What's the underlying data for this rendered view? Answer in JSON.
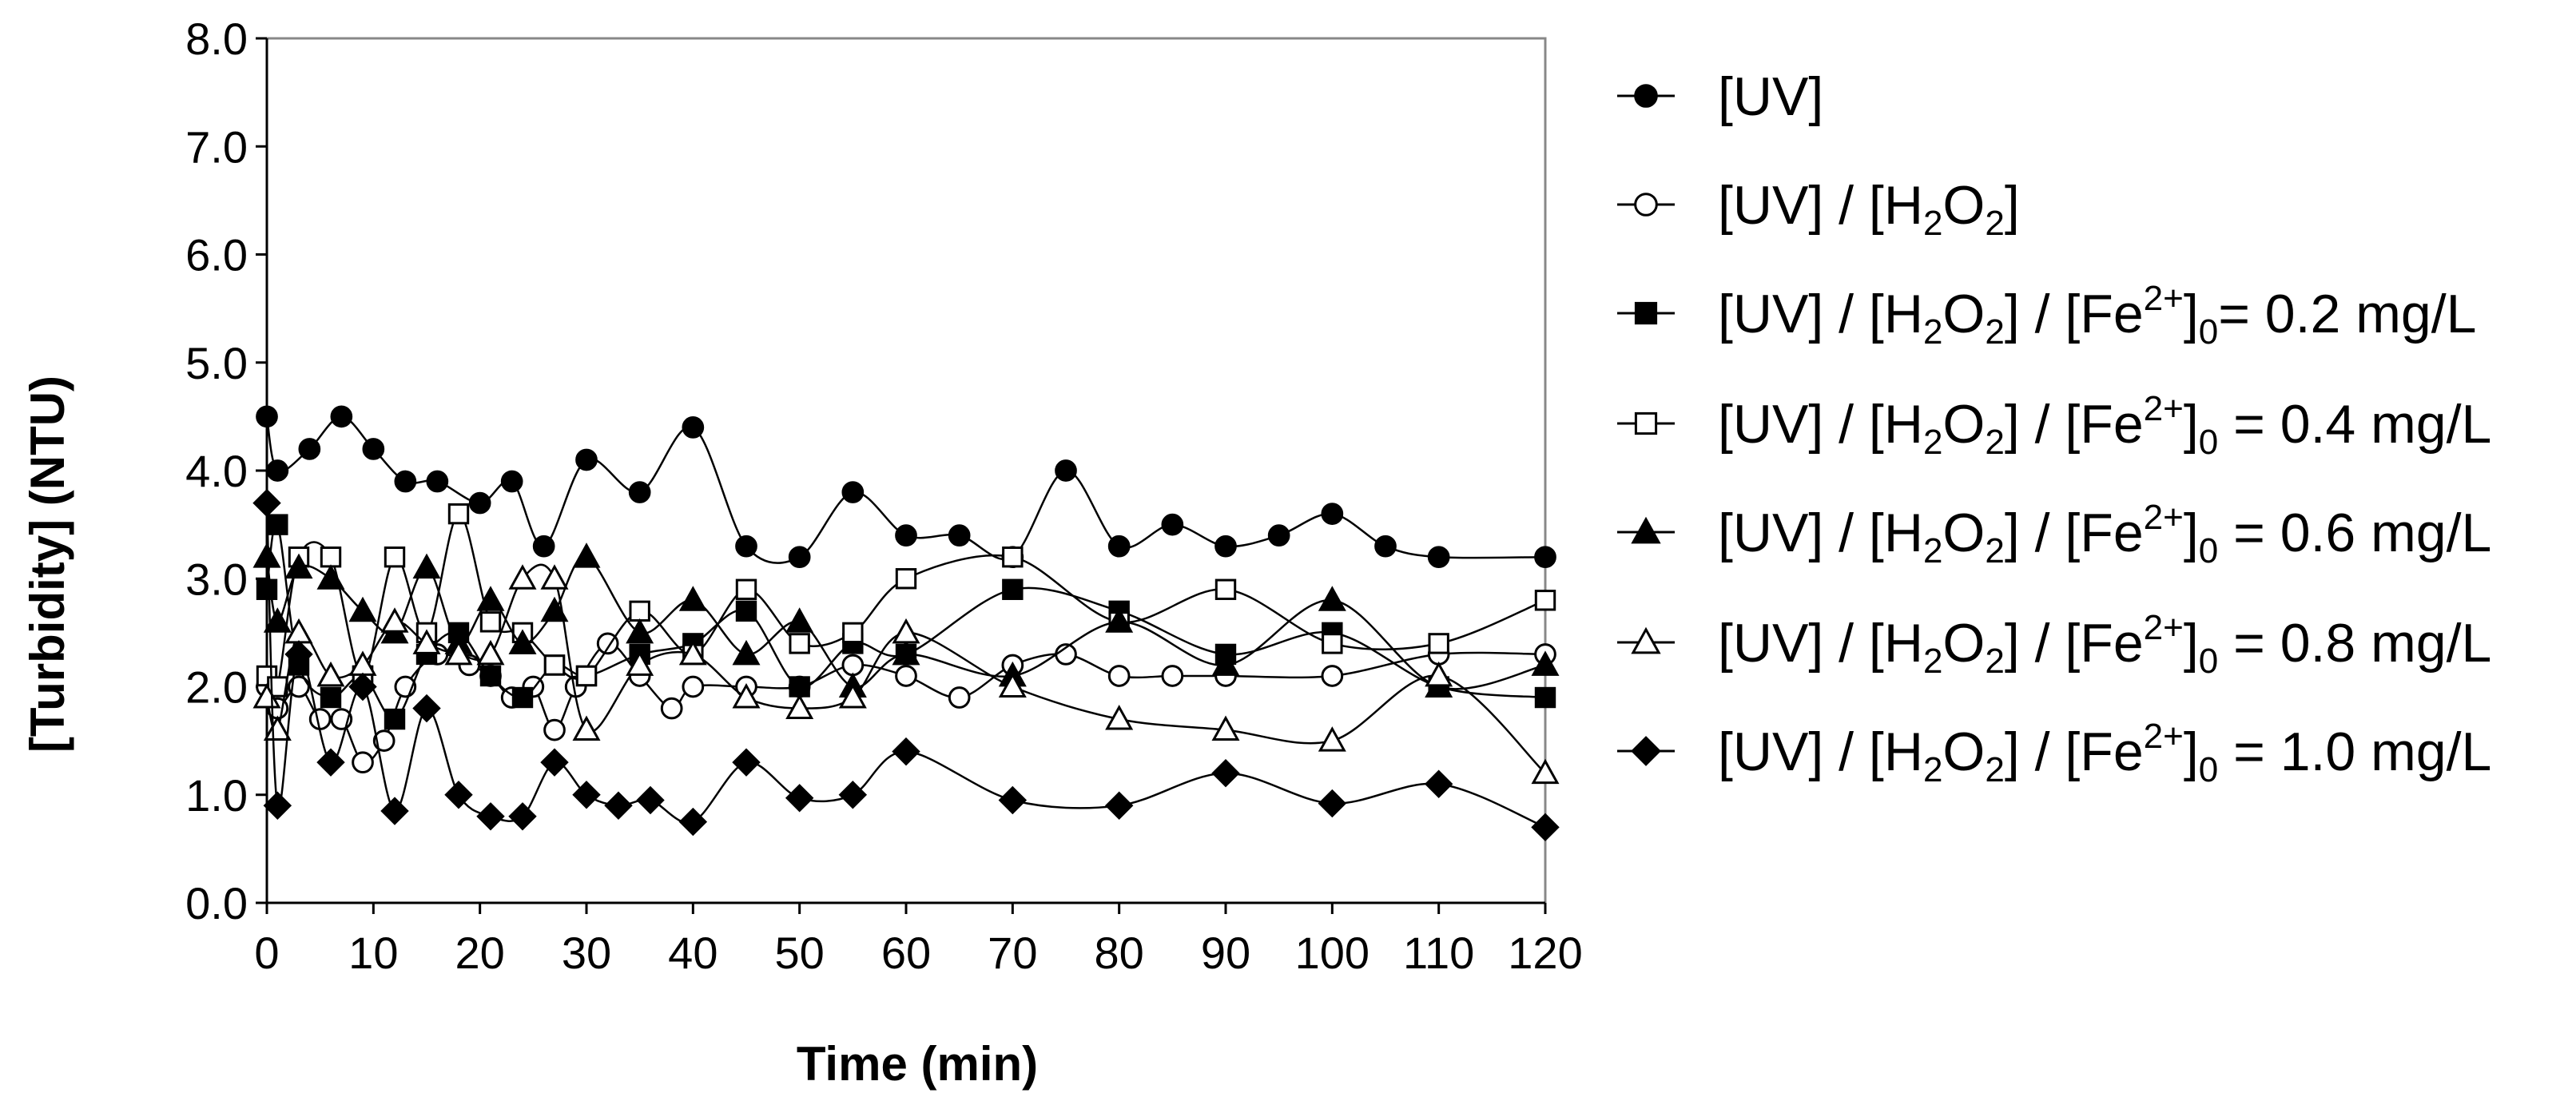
{
  "chart_data": {
    "type": "line",
    "title": "",
    "xlabel": "Time (min)",
    "ylabel": "[Turbidity] (NTU)",
    "xlim": [
      0,
      120
    ],
    "ylim": [
      0,
      8
    ],
    "xticks": [
      0,
      10,
      20,
      30,
      40,
      50,
      60,
      70,
      80,
      90,
      100,
      110,
      120
    ],
    "yticks": [
      "0.0",
      "1.0",
      "2.0",
      "3.0",
      "4.0",
      "5.0",
      "6.0",
      "7.0",
      "8.0"
    ],
    "grid": false,
    "legend_position": "right",
    "series": [
      {
        "name": "[UV]",
        "legend_parts": [
          {
            "t": "[UV]"
          }
        ],
        "marker": "circle",
        "fill": "filled",
        "x": [
          0,
          1,
          4,
          7,
          10,
          13,
          16,
          20,
          23,
          26,
          30,
          35,
          40,
          45,
          50,
          55,
          60,
          65,
          70,
          75,
          80,
          85,
          90,
          95,
          100,
          105,
          110,
          120
        ],
        "y": [
          4.5,
          4.0,
          4.2,
          4.5,
          4.2,
          3.9,
          3.9,
          3.7,
          3.9,
          3.3,
          4.1,
          3.8,
          4.4,
          3.3,
          3.2,
          3.8,
          3.4,
          3.4,
          3.2,
          4.0,
          3.3,
          3.5,
          3.3,
          3.4,
          3.6,
          3.3,
          3.2,
          3.2
        ]
      },
      {
        "name": "[UV] / [H2O2]",
        "legend_parts": [
          {
            "t": "[UV] / [H"
          },
          {
            "t": "2",
            "s": "sub"
          },
          {
            "t": "O"
          },
          {
            "t": "2",
            "s": "sub"
          },
          {
            "t": "]"
          }
        ],
        "marker": "circle",
        "fill": "open",
        "x": [
          0,
          1,
          3,
          5,
          7,
          9,
          11,
          13,
          16,
          19,
          21,
          23,
          25,
          27,
          29,
          32,
          35,
          38,
          40,
          45,
          50,
          55,
          60,
          65,
          70,
          75,
          80,
          85,
          90,
          100,
          110,
          120
        ],
        "y": [
          2.0,
          1.8,
          2.0,
          1.7,
          1.7,
          1.3,
          1.5,
          2.0,
          2.3,
          2.2,
          2.1,
          1.9,
          2.0,
          1.6,
          2.0,
          2.4,
          2.1,
          1.8,
          2.0,
          2.0,
          2.0,
          2.2,
          2.1,
          1.9,
          2.2,
          2.3,
          2.1,
          2.1,
          2.1,
          2.1,
          2.3,
          2.3
        ]
      },
      {
        "name": "[UV] / [H2O2] / [Fe2+]0= 0.2 mg/L",
        "legend_parts": [
          {
            "t": "[UV] / [H"
          },
          {
            "t": "2",
            "s": "sub"
          },
          {
            "t": "O"
          },
          {
            "t": "2",
            "s": "sub"
          },
          {
            "t": "] / [Fe"
          },
          {
            "t": "2+",
            "s": "sup"
          },
          {
            "t": "]"
          },
          {
            "t": "0",
            "s": "sub"
          },
          {
            "t": "= 0.2 mg/L"
          }
        ],
        "marker": "square",
        "fill": "filled",
        "x": [
          0,
          1,
          3,
          6,
          9,
          12,
          15,
          18,
          21,
          24,
          27,
          30,
          35,
          40,
          45,
          50,
          55,
          60,
          70,
          80,
          90,
          100,
          110,
          120
        ],
        "y": [
          2.9,
          3.5,
          2.2,
          1.9,
          2.1,
          1.7,
          2.3,
          2.5,
          2.1,
          1.9,
          2.2,
          2.1,
          2.3,
          2.4,
          2.7,
          2.0,
          2.4,
          2.3,
          2.9,
          2.7,
          2.3,
          2.5,
          2.0,
          1.9
        ]
      },
      {
        "name": "[UV] / [H2O2] / [Fe2+]0 = 0.4 mg/L",
        "legend_parts": [
          {
            "t": "[UV] / [H"
          },
          {
            "t": "2",
            "s": "sub"
          },
          {
            "t": "O"
          },
          {
            "t": "2",
            "s": "sub"
          },
          {
            "t": "] / [Fe"
          },
          {
            "t": "2+",
            "s": "sup"
          },
          {
            "t": "]"
          },
          {
            "t": "0",
            "s": "sub"
          },
          {
            "t": " = 0.4 mg/L"
          }
        ],
        "marker": "square",
        "fill": "open",
        "x": [
          0,
          1,
          3,
          6,
          9,
          12,
          15,
          18,
          21,
          24,
          27,
          30,
          35,
          40,
          45,
          50,
          55,
          60,
          70,
          80,
          90,
          100,
          110,
          120
        ],
        "y": [
          2.1,
          2.0,
          3.2,
          3.2,
          2.1,
          3.2,
          2.5,
          3.6,
          2.6,
          2.5,
          2.2,
          2.1,
          2.7,
          2.3,
          2.9,
          2.4,
          2.5,
          3.0,
          3.2,
          2.6,
          2.9,
          2.4,
          2.4,
          2.8
        ]
      },
      {
        "name": "[UV] / [H2O2] / [Fe2+]0 = 0.6 mg/L",
        "legend_parts": [
          {
            "t": "[UV] / [H"
          },
          {
            "t": "2",
            "s": "sub"
          },
          {
            "t": "O"
          },
          {
            "t": "2",
            "s": "sub"
          },
          {
            "t": "] / [Fe"
          },
          {
            "t": "2+",
            "s": "sup"
          },
          {
            "t": "]"
          },
          {
            "t": "0",
            "s": "sub"
          },
          {
            "t": " = 0.6 mg/L"
          }
        ],
        "marker": "triangle",
        "fill": "filled",
        "x": [
          0,
          1,
          3,
          6,
          9,
          12,
          15,
          18,
          21,
          24,
          27,
          30,
          35,
          40,
          45,
          50,
          55,
          60,
          70,
          80,
          90,
          100,
          110,
          120
        ],
        "y": [
          3.2,
          2.6,
          3.1,
          3.0,
          2.7,
          2.5,
          3.1,
          2.4,
          2.8,
          2.4,
          2.7,
          3.2,
          2.5,
          2.8,
          2.3,
          2.6,
          2.0,
          2.3,
          2.1,
          2.6,
          2.2,
          2.8,
          2.0,
          2.2
        ]
      },
      {
        "name": "[UV] / [H2O2] / [Fe2+]0 = 0.8 mg/L",
        "legend_parts": [
          {
            "t": "[UV] / [H"
          },
          {
            "t": "2",
            "s": "sub"
          },
          {
            "t": "O"
          },
          {
            "t": "2",
            "s": "sub"
          },
          {
            "t": "] / [Fe"
          },
          {
            "t": "2+",
            "s": "sup"
          },
          {
            "t": "]"
          },
          {
            "t": "0",
            "s": "sub"
          },
          {
            "t": " = 0.8 mg/L"
          }
        ],
        "marker": "triangle",
        "fill": "open",
        "x": [
          0,
          1,
          3,
          6,
          9,
          12,
          15,
          18,
          21,
          24,
          27,
          30,
          35,
          40,
          45,
          50,
          55,
          60,
          70,
          80,
          90,
          100,
          110,
          120
        ],
        "y": [
          1.9,
          1.6,
          2.5,
          2.1,
          2.2,
          2.6,
          2.4,
          2.3,
          2.3,
          3.0,
          3.0,
          1.6,
          2.2,
          2.3,
          1.9,
          1.8,
          1.9,
          2.5,
          2.0,
          1.7,
          1.6,
          1.5,
          2.1,
          1.2
        ]
      },
      {
        "name": "[UV] / [H2O2] / [Fe2+]0 = 1.0 mg/L",
        "legend_parts": [
          {
            "t": "[UV] / [H"
          },
          {
            "t": "2",
            "s": "sub"
          },
          {
            "t": "O"
          },
          {
            "t": "2",
            "s": "sub"
          },
          {
            "t": "] / [Fe"
          },
          {
            "t": "2+",
            "s": "sup"
          },
          {
            "t": "]"
          },
          {
            "t": "0",
            "s": "sub"
          },
          {
            "t": " = 1.0 mg/L"
          }
        ],
        "marker": "diamond",
        "fill": "filled",
        "x": [
          0,
          1,
          3,
          6,
          9,
          12,
          15,
          18,
          21,
          24,
          27,
          30,
          33,
          36,
          40,
          45,
          50,
          55,
          60,
          70,
          80,
          90,
          100,
          110,
          120
        ],
        "y": [
          3.7,
          0.9,
          2.3,
          1.3,
          2.0,
          0.85,
          1.8,
          1.0,
          0.8,
          0.8,
          1.3,
          1.0,
          0.9,
          0.95,
          0.75,
          1.3,
          0.97,
          1.0,
          1.4,
          0.95,
          0.9,
          1.2,
          0.92,
          1.1,
          0.7
        ]
      }
    ]
  }
}
